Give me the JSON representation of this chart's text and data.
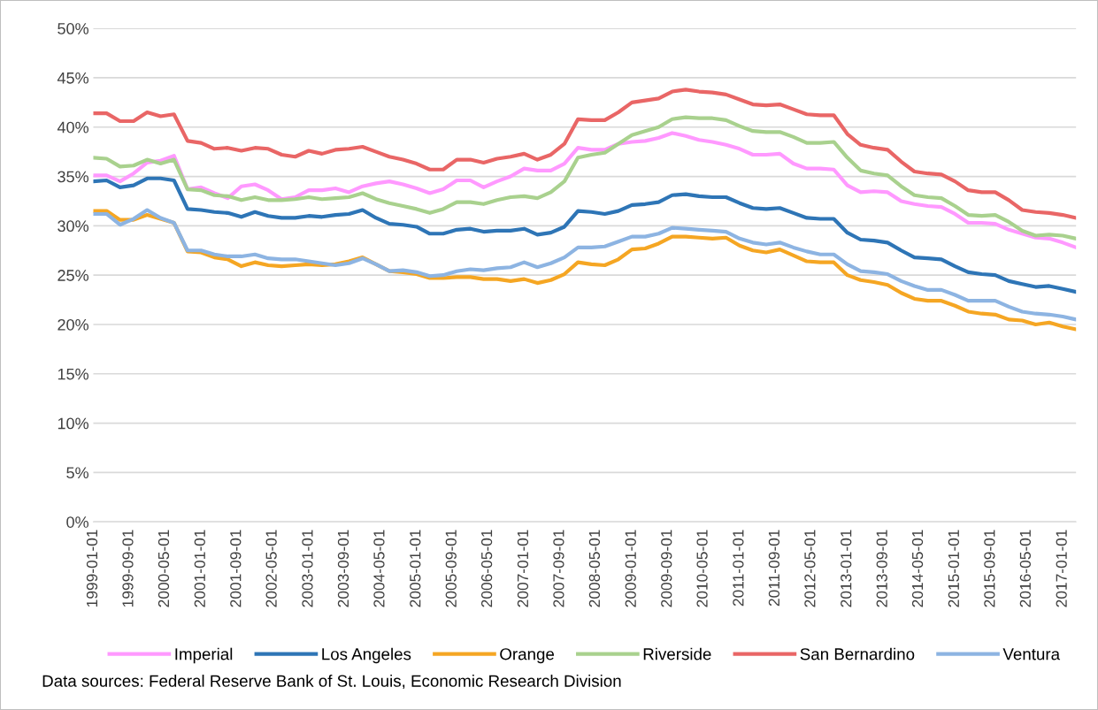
{
  "chart_data": {
    "type": "line",
    "x": [
      "1999-01",
      "1999-04",
      "1999-07",
      "1999-10",
      "2000-01",
      "2000-04",
      "2000-07",
      "2000-10",
      "2001-01",
      "2001-04",
      "2001-07",
      "2001-10",
      "2002-01",
      "2002-04",
      "2002-07",
      "2002-10",
      "2003-01",
      "2003-04",
      "2003-07",
      "2003-10",
      "2004-01",
      "2004-04",
      "2004-07",
      "2004-10",
      "2005-01",
      "2005-04",
      "2005-07",
      "2005-10",
      "2006-01",
      "2006-04",
      "2006-07",
      "2006-10",
      "2007-01",
      "2007-04",
      "2007-07",
      "2007-10",
      "2008-01",
      "2008-04",
      "2008-07",
      "2008-10",
      "2009-01",
      "2009-04",
      "2009-07",
      "2009-10",
      "2010-01",
      "2010-04",
      "2010-07",
      "2010-10",
      "2011-01",
      "2011-04",
      "2011-07",
      "2011-10",
      "2012-01",
      "2012-04",
      "2012-07",
      "2012-10",
      "2013-01",
      "2013-04",
      "2013-07",
      "2013-10",
      "2014-01",
      "2014-04",
      "2014-07",
      "2014-10",
      "2015-01",
      "2015-04",
      "2015-07",
      "2015-10",
      "2016-01",
      "2016-04",
      "2016-07",
      "2016-10",
      "2017-01",
      "2017-04"
    ],
    "series": [
      {
        "name": "Imperial",
        "color": "#ff99ff",
        "values": [
          35.1,
          35.1,
          34.5,
          35.3,
          36.4,
          36.6,
          37.1,
          33.7,
          33.9,
          33.3,
          32.8,
          34.0,
          34.2,
          33.6,
          32.7,
          32.9,
          33.6,
          33.6,
          33.8,
          33.4,
          34.0,
          34.3,
          34.5,
          34.2,
          33.8,
          33.3,
          33.7,
          34.6,
          34.6,
          33.9,
          34.5,
          35.0,
          35.8,
          35.6,
          35.6,
          36.3,
          37.9,
          37.7,
          37.7,
          38.3,
          38.5,
          38.6,
          38.9,
          39.4,
          39.1,
          38.7,
          38.5,
          38.2,
          37.8,
          37.2,
          37.2,
          37.3,
          36.3,
          35.8,
          35.8,
          35.7,
          34.1,
          33.4,
          33.5,
          33.4,
          32.5,
          32.2,
          32.0,
          31.9,
          31.2,
          30.3,
          30.3,
          30.2,
          29.6,
          29.2,
          28.8,
          28.7,
          28.3,
          27.8
        ]
      },
      {
        "name": "Los Angeles",
        "color": "#2e75b6",
        "values": [
          34.5,
          34.6,
          33.9,
          34.1,
          34.8,
          34.8,
          34.6,
          31.7,
          31.6,
          31.4,
          31.3,
          30.9,
          31.4,
          31.0,
          30.8,
          30.8,
          31.0,
          30.9,
          31.1,
          31.2,
          31.6,
          30.8,
          30.2,
          30.1,
          29.9,
          29.2,
          29.2,
          29.6,
          29.7,
          29.4,
          29.5,
          29.5,
          29.7,
          29.1,
          29.3,
          29.9,
          31.5,
          31.4,
          31.2,
          31.5,
          32.1,
          32.2,
          32.4,
          33.1,
          33.2,
          33.0,
          32.9,
          32.9,
          32.3,
          31.8,
          31.7,
          31.8,
          31.3,
          30.8,
          30.7,
          30.7,
          29.3,
          28.6,
          28.5,
          28.3,
          27.5,
          26.8,
          26.7,
          26.6,
          25.9,
          25.3,
          25.1,
          25.0,
          24.4,
          24.1,
          23.8,
          23.9,
          23.6,
          23.3
        ]
      },
      {
        "name": "Orange",
        "color": "#f5a623",
        "values": [
          31.5,
          31.5,
          30.6,
          30.6,
          31.1,
          30.7,
          30.3,
          27.4,
          27.3,
          26.8,
          26.6,
          25.9,
          26.3,
          26.0,
          25.9,
          26.0,
          26.1,
          26.0,
          26.1,
          26.4,
          26.8,
          26.1,
          25.4,
          25.3,
          25.1,
          24.7,
          24.7,
          24.8,
          24.8,
          24.6,
          24.6,
          24.4,
          24.6,
          24.2,
          24.5,
          25.1,
          26.3,
          26.1,
          26.0,
          26.6,
          27.6,
          27.7,
          28.2,
          28.9,
          28.9,
          28.8,
          28.7,
          28.8,
          28.0,
          27.5,
          27.3,
          27.6,
          27.0,
          26.4,
          26.3,
          26.3,
          25.0,
          24.5,
          24.3,
          24.0,
          23.2,
          22.6,
          22.4,
          22.4,
          21.9,
          21.3,
          21.1,
          21.0,
          20.5,
          20.4,
          20.0,
          20.2,
          19.8,
          19.5
        ]
      },
      {
        "name": "Riverside",
        "color": "#a9d18e",
        "values": [
          36.9,
          36.8,
          36.0,
          36.1,
          36.7,
          36.3,
          36.7,
          33.7,
          33.6,
          33.1,
          33.0,
          32.6,
          32.9,
          32.6,
          32.6,
          32.7,
          32.9,
          32.7,
          32.8,
          32.9,
          33.3,
          32.7,
          32.3,
          32.0,
          31.7,
          31.3,
          31.7,
          32.4,
          32.4,
          32.2,
          32.6,
          32.9,
          33.0,
          32.8,
          33.4,
          34.5,
          36.9,
          37.2,
          37.4,
          38.3,
          39.2,
          39.6,
          40.0,
          40.8,
          41.0,
          40.9,
          40.9,
          40.7,
          40.1,
          39.6,
          39.5,
          39.5,
          39.0,
          38.4,
          38.4,
          38.5,
          36.9,
          35.6,
          35.3,
          35.1,
          34.0,
          33.1,
          32.9,
          32.8,
          32.0,
          31.1,
          31.0,
          31.1,
          30.4,
          29.5,
          29.0,
          29.1,
          29.0,
          28.7
        ]
      },
      {
        "name": "San Bernardino",
        "color": "#e96666",
        "values": [
          41.4,
          41.4,
          40.6,
          40.6,
          41.5,
          41.1,
          41.3,
          38.6,
          38.4,
          37.8,
          37.9,
          37.6,
          37.9,
          37.8,
          37.2,
          37.0,
          37.6,
          37.3,
          37.7,
          37.8,
          38.0,
          37.5,
          37.0,
          36.7,
          36.3,
          35.7,
          35.7,
          36.7,
          36.7,
          36.4,
          36.8,
          37.0,
          37.3,
          36.7,
          37.2,
          38.3,
          40.8,
          40.7,
          40.7,
          41.5,
          42.5,
          42.7,
          42.9,
          43.6,
          43.8,
          43.6,
          43.5,
          43.3,
          42.8,
          42.3,
          42.2,
          42.3,
          41.8,
          41.3,
          41.2,
          41.2,
          39.3,
          38.2,
          37.9,
          37.7,
          36.5,
          35.5,
          35.3,
          35.2,
          34.5,
          33.6,
          33.4,
          33.4,
          32.6,
          31.6,
          31.4,
          31.3,
          31.1,
          30.8
        ]
      },
      {
        "name": "Ventura",
        "color": "#8db4e2",
        "values": [
          31.2,
          31.2,
          30.1,
          30.7,
          31.6,
          30.8,
          30.3,
          27.5,
          27.5,
          27.1,
          26.9,
          26.9,
          27.1,
          26.7,
          26.6,
          26.6,
          26.4,
          26.2,
          26.0,
          26.2,
          26.7,
          26.1,
          25.4,
          25.5,
          25.3,
          24.9,
          25.0,
          25.4,
          25.6,
          25.5,
          25.7,
          25.8,
          26.3,
          25.8,
          26.2,
          26.8,
          27.8,
          27.8,
          27.9,
          28.4,
          28.9,
          28.9,
          29.2,
          29.8,
          29.7,
          29.6,
          29.5,
          29.4,
          28.7,
          28.3,
          28.1,
          28.3,
          27.8,
          27.4,
          27.1,
          27.1,
          26.1,
          25.4,
          25.3,
          25.1,
          24.4,
          23.9,
          23.5,
          23.5,
          23.0,
          22.4,
          22.4,
          22.4,
          21.8,
          21.3,
          21.1,
          21.0,
          20.8,
          20.5
        ]
      }
    ],
    "xlim": [
      "1999-01-01",
      "2017-04-01"
    ],
    "xticks": [
      {
        "value": "1999-01-01",
        "label": "1999-01-01"
      },
      {
        "value": "1999-09-01",
        "label": "1999-09-01"
      },
      {
        "value": "2000-05-01",
        "label": "2000-05-01"
      },
      {
        "value": "2001-01-01",
        "label": "2001-01-01"
      },
      {
        "value": "2001-09-01",
        "label": "2001-09-01"
      },
      {
        "value": "2002-05-01",
        "label": "2002-05-01"
      },
      {
        "value": "2003-01-01",
        "label": "2003-01-01"
      },
      {
        "value": "2003-09-01",
        "label": "2003-09-01"
      },
      {
        "value": "2004-05-01",
        "label": "2004-05-01"
      },
      {
        "value": "2005-01-01",
        "label": "2005-01-01"
      },
      {
        "value": "2005-09-01",
        "label": "2005-09-01"
      },
      {
        "value": "2006-05-01",
        "label": "2006-05-01"
      },
      {
        "value": "2007-01-01",
        "label": "2007-01-01"
      },
      {
        "value": "2007-09-01",
        "label": "2007-09-01"
      },
      {
        "value": "2008-05-01",
        "label": "2008-05-01"
      },
      {
        "value": "2009-01-01",
        "label": "2009-01-01"
      },
      {
        "value": "2009-09-01",
        "label": "2009-09-01"
      },
      {
        "value": "2010-05-01",
        "label": "2010-05-01"
      },
      {
        "value": "2011-01-01",
        "label": "2011-01-01"
      },
      {
        "value": "2011-09-01",
        "label": "2011-09-01"
      },
      {
        "value": "2012-05-01",
        "label": "2012-05-01"
      },
      {
        "value": "2013-01-01",
        "label": "2013-01-01"
      },
      {
        "value": "2013-09-01",
        "label": "2013-09-01"
      },
      {
        "value": "2014-05-01",
        "label": "2014-05-01"
      },
      {
        "value": "2015-01-01",
        "label": "2015-01-01"
      },
      {
        "value": "2015-09-01",
        "label": "2015-09-01"
      },
      {
        "value": "2016-05-01",
        "label": "2016-05-01"
      },
      {
        "value": "2017-01-01",
        "label": "2017-01-01"
      }
    ],
    "ylim": [
      0,
      50
    ],
    "yticks": [
      {
        "value": 0,
        "label": "0%"
      },
      {
        "value": 5,
        "label": "5%"
      },
      {
        "value": 10,
        "label": "10%"
      },
      {
        "value": 15,
        "label": "15%"
      },
      {
        "value": 20,
        "label": "20%"
      },
      {
        "value": 25,
        "label": "25%"
      },
      {
        "value": 30,
        "label": "30%"
      },
      {
        "value": 35,
        "label": "35%"
      },
      {
        "value": 40,
        "label": "40%"
      },
      {
        "value": 45,
        "label": "45%"
      },
      {
        "value": 50,
        "label": "50%"
      }
    ],
    "grid": "y",
    "legend": "bottom",
    "marker": "none",
    "line_style": "solid",
    "annotations": [
      "Data sources: Federal Reserve Bank of St. Louis, Economic Research Division"
    ]
  }
}
